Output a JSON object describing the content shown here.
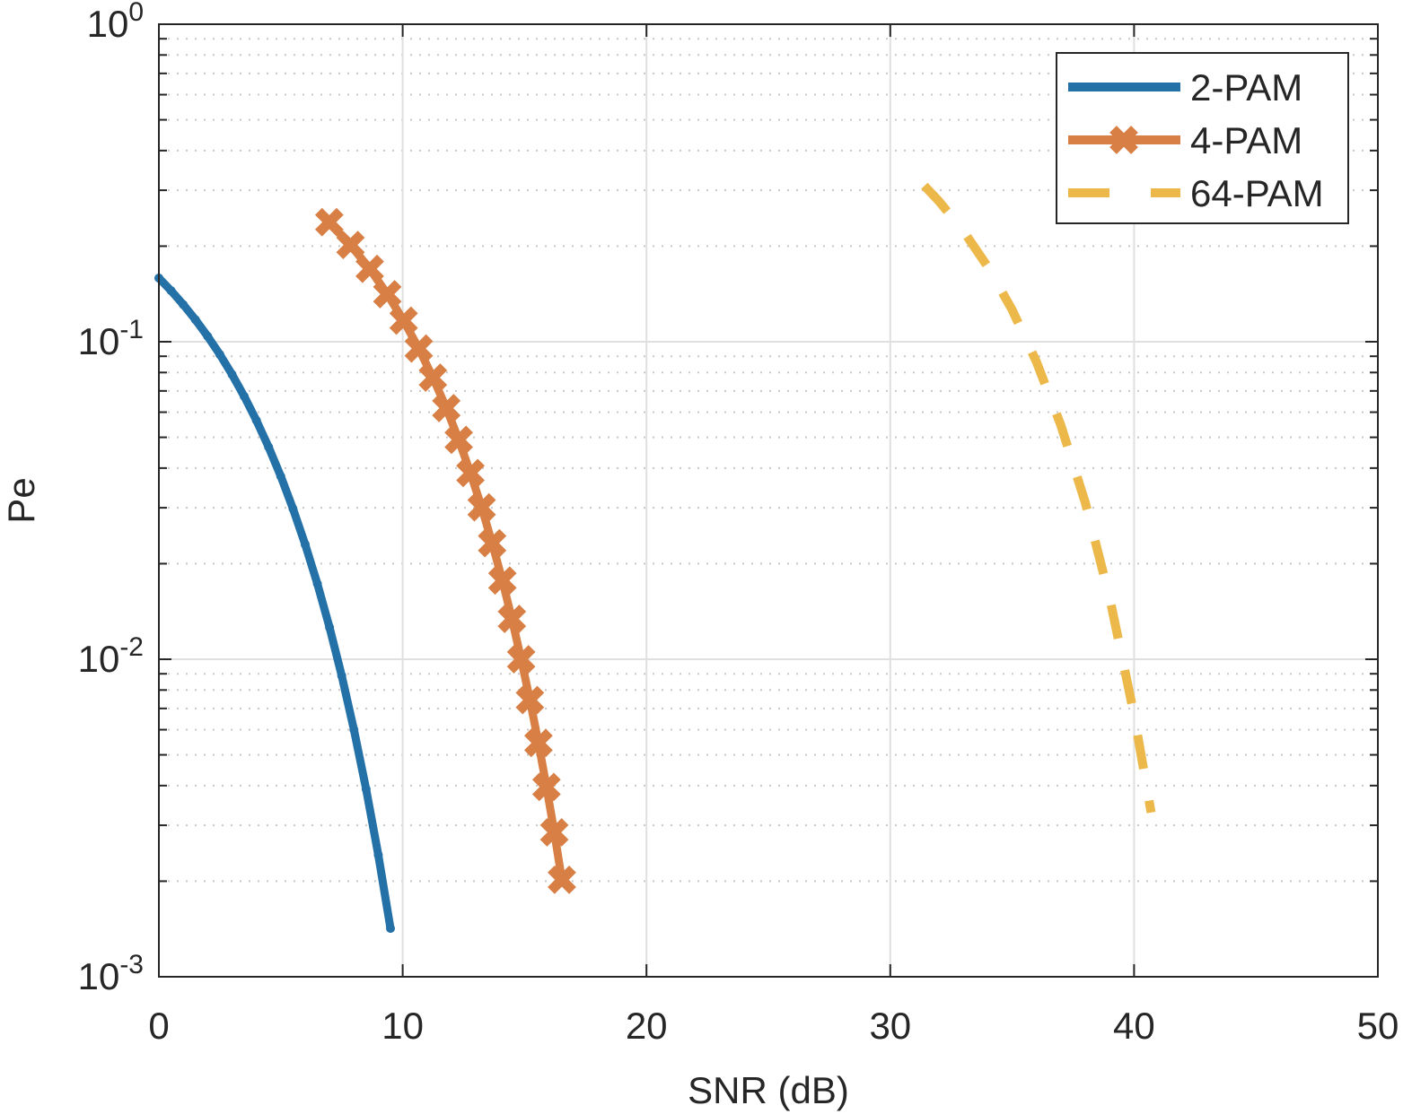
{
  "chart_data": {
    "type": "line",
    "title": "",
    "xlabel": "SNR (dB)",
    "ylabel": "Pe",
    "xlim": [
      0,
      50
    ],
    "ylim": [
      0.001,
      1
    ],
    "yscale": "log",
    "xticks": [
      0,
      10,
      20,
      30,
      40,
      50
    ],
    "yticks": [
      {
        "base": "10",
        "exp": "-3",
        "value": 0.001
      },
      {
        "base": "10",
        "exp": "-2",
        "value": 0.01
      },
      {
        "base": "10",
        "exp": "-1",
        "value": 0.1
      },
      {
        "base": "10",
        "exp": "0",
        "value": 1
      }
    ],
    "grid": {
      "major": true,
      "minor_y": true
    },
    "legend_placement": "top-right",
    "series": [
      {
        "name": "2-PAM",
        "color": "#2471a8",
        "style": "solid",
        "marker": "point",
        "x": [
          0,
          0.5,
          1,
          1.5,
          2,
          2.5,
          3,
          3.5,
          4,
          4.5,
          5,
          5.5,
          6,
          6.5,
          7,
          7.5,
          8,
          8.5,
          9,
          9.5
        ],
        "y": [
          0.1587,
          0.1448,
          0.1309,
          0.1173,
          0.104,
          0.0912,
          0.0789,
          0.0673,
          0.0565,
          0.0466,
          0.0377,
          0.0298,
          0.023,
          0.0173,
          0.0126,
          0.00887,
          0.006,
          0.0039,
          0.00242,
          0.00142
        ]
      },
      {
        "name": "4-PAM",
        "color": "#d77f45",
        "style": "solid",
        "marker": "x",
        "x": [
          6.99,
          7.86,
          8.65,
          9.37,
          10.04,
          10.66,
          11.24,
          11.79,
          12.3,
          12.78,
          13.24,
          13.67,
          14.09,
          14.48,
          14.86,
          15.22,
          15.57,
          15.9,
          16.22,
          16.53
        ],
        "y": [
          0.238,
          0.2017,
          0.1696,
          0.1412,
          0.1165,
          0.0952,
          0.0771,
          0.0618,
          0.0491,
          0.0386,
          0.0301,
          0.0232,
          0.0177,
          0.0134,
          0.01,
          0.00744,
          0.00545,
          0.00396,
          0.00285,
          0.00202
        ]
      },
      {
        "name": "64-PAM",
        "color": "#ecb84a",
        "style": "dashed",
        "marker": "none",
        "x": [
          31.4,
          32,
          33,
          34,
          35,
          36,
          37,
          38,
          39,
          40,
          40.7
        ],
        "y": [
          0.3097,
          0.2768,
          0.2231,
          0.1722,
          0.126,
          0.0863,
          0.0545,
          0.0311,
          0.01561,
          0.00669,
          0.00329
        ]
      }
    ]
  }
}
